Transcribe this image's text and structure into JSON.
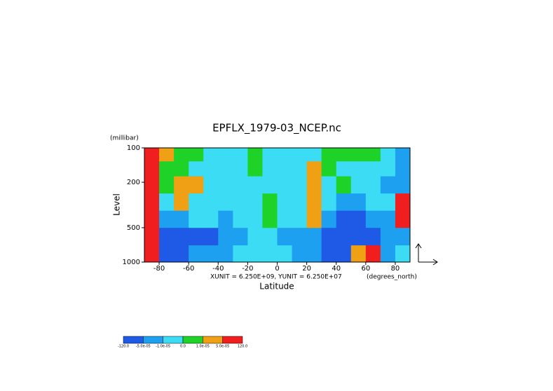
{
  "chart_data": {
    "type": "contour",
    "title": "EPFLX_1979-03_NCEP.nc",
    "y_units": "(millibar)",
    "ylabel": "Level",
    "xlabel": "Latitude",
    "x_units": "(degrees_north)",
    "vector_scale": "XUNIT = 6.250E+09, YUNIT = 6.250E+07",
    "xlim": [
      -90,
      90
    ],
    "xticks": [
      -80,
      -60,
      -40,
      -20,
      0,
      20,
      40,
      60,
      80
    ],
    "ylim": [
      1000,
      100
    ],
    "yticks": [
      100,
      200,
      500,
      1000
    ],
    "ylog": true,
    "x": [
      -85,
      -75,
      -65,
      -55,
      -45,
      -35,
      -25,
      -15,
      -5,
      5,
      15,
      25,
      35,
      45,
      55,
      65,
      75,
      85
    ],
    "y": [
      115,
      150,
      210,
      300,
      420,
      600,
      850
    ],
    "z": [
      [
        8e-05,
        3e-05,
        5e-06,
        5e-06,
        -5e-06,
        -5e-06,
        -5e-06,
        5e-06,
        -5e-06,
        -5e-06,
        -5e-06,
        -5e-06,
        5e-06,
        5e-06,
        5e-06,
        5e-06,
        -5e-06,
        -3e-05
      ],
      [
        8e-05,
        5e-06,
        5e-06,
        -5e-06,
        -5e-06,
        -5e-06,
        -5e-06,
        5e-06,
        -5e-06,
        -5e-06,
        -5e-06,
        3e-05,
        5e-06,
        -5e-06,
        -5e-06,
        -5e-06,
        -5e-06,
        -3e-05
      ],
      [
        8e-05,
        5e-06,
        3e-05,
        3e-05,
        -5e-06,
        -5e-06,
        -5e-06,
        -5e-06,
        -5e-06,
        -5e-06,
        -5e-06,
        3e-05,
        -5e-06,
        5e-06,
        -5e-06,
        -5e-06,
        -3e-05,
        -3e-05
      ],
      [
        8e-05,
        -5e-06,
        3e-05,
        -5e-06,
        -5e-06,
        -5e-06,
        -5e-06,
        -5e-06,
        5e-06,
        -5e-06,
        -5e-06,
        3e-05,
        -5e-06,
        -3e-05,
        -3e-05,
        -5e-06,
        -5e-06,
        8e-05
      ],
      [
        8e-05,
        -3e-05,
        -3e-05,
        -5e-06,
        -5e-06,
        -3e-05,
        -5e-06,
        -5e-06,
        5e-06,
        -5e-06,
        -5e-06,
        3e-05,
        -3e-05,
        -8e-05,
        -8e-05,
        -3e-05,
        -3e-05,
        8e-05
      ],
      [
        8e-05,
        -8e-05,
        -8e-05,
        -8e-05,
        -8e-05,
        -3e-05,
        -3e-05,
        -5e-06,
        -5e-06,
        -3e-05,
        -3e-05,
        -3e-05,
        -8e-05,
        -8e-05,
        -8e-05,
        -8e-05,
        -3e-05,
        -3e-05
      ],
      [
        8e-05,
        -8e-05,
        -8e-05,
        -3e-05,
        -3e-05,
        -3e-05,
        -5e-06,
        -5e-06,
        -5e-06,
        -5e-06,
        -3e-05,
        -3e-05,
        -8e-05,
        -8e-05,
        3e-05,
        8e-05,
        -3e-05,
        -5e-06
      ]
    ],
    "levels": [
      {
        "value": -120,
        "label": "-120.0"
      },
      {
        "value": -5e-05,
        "label": "-5.0e-05"
      },
      {
        "value": -1e-05,
        "label": "-1.0e-05"
      },
      {
        "value": 0,
        "label": "0.0"
      },
      {
        "value": 1e-05,
        "label": "1.0e-05"
      },
      {
        "value": 5e-05,
        "label": "5.0e-05"
      },
      {
        "value": 120,
        "label": "120.0"
      }
    ],
    "colors": [
      "#1e5ae6",
      "#1ea0f0",
      "#3cdcf5",
      "#1ed228",
      "#f0a014",
      "#f01e1e"
    ]
  }
}
